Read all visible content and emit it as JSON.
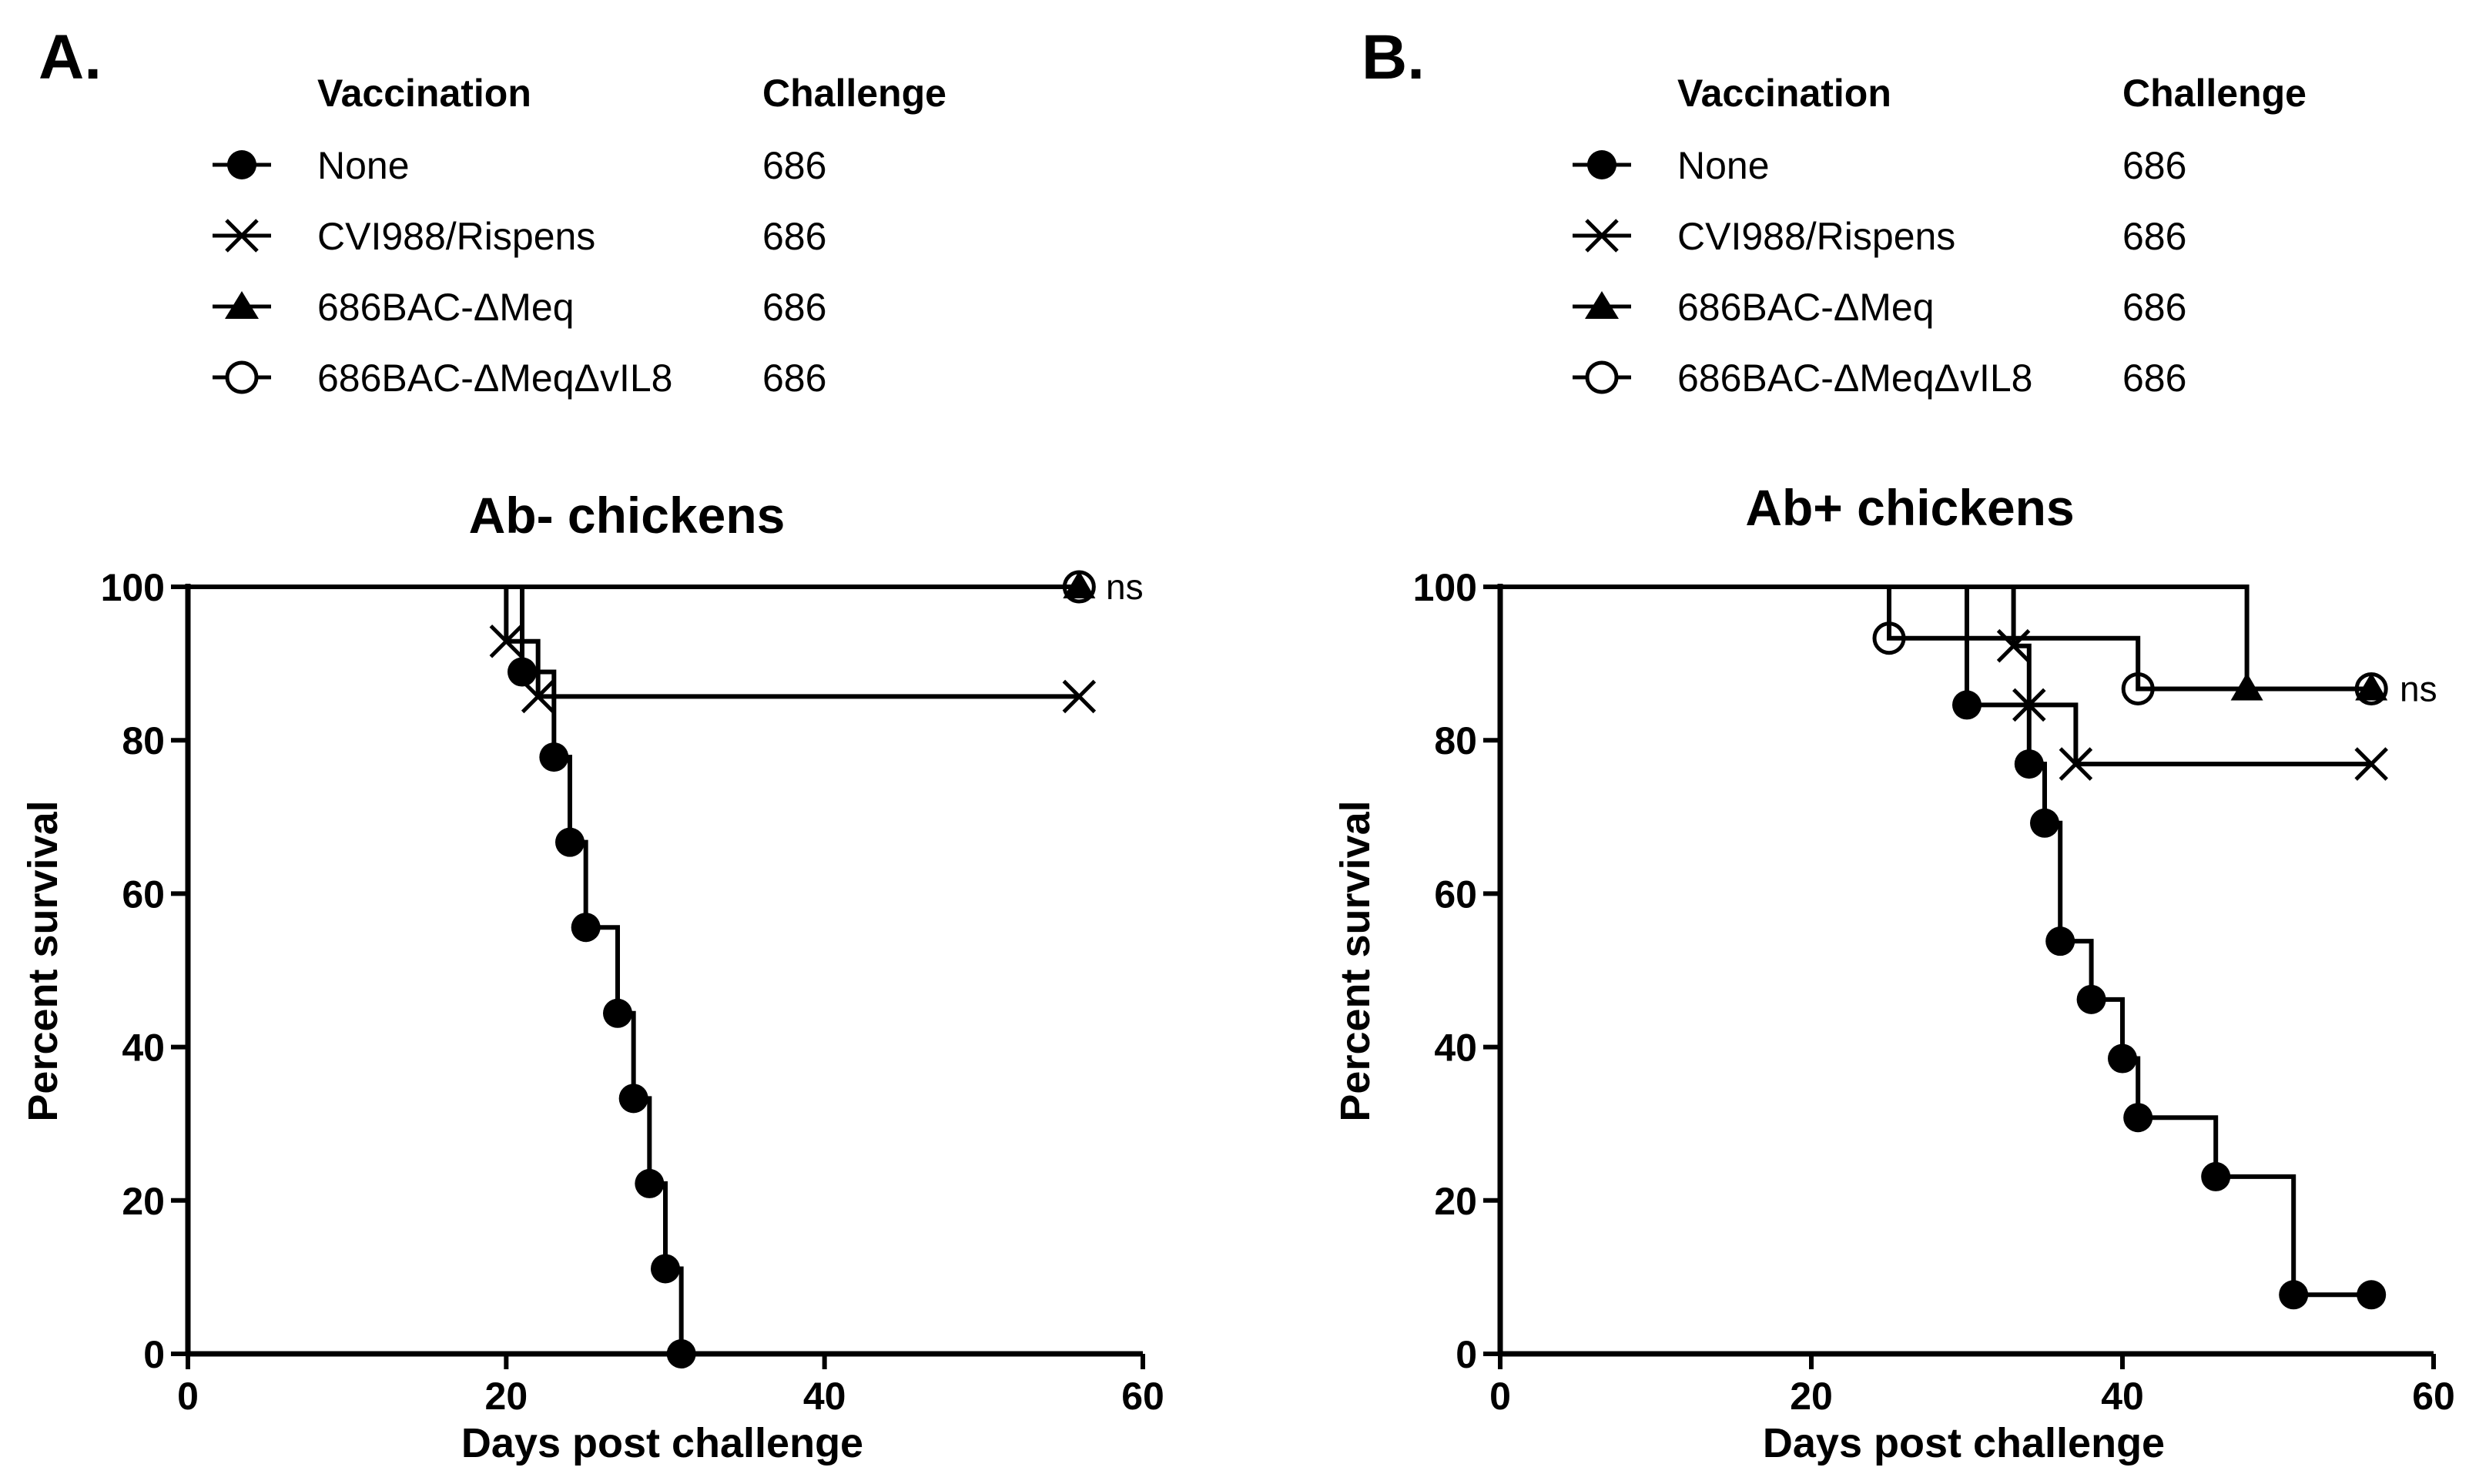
{
  "chart_data": [
    {
      "type": "line",
      "subtype": "kaplan-meier survival",
      "panel": "A.",
      "title": "Ab- chickens",
      "xlabel": "Days post  challenge",
      "ylabel": "Percent survival",
      "xlim": [
        0,
        60
      ],
      "ylim": [
        0,
        100
      ],
      "xticks": [
        0,
        20,
        40,
        60
      ],
      "yticks": [
        0,
        20,
        40,
        60,
        80,
        100
      ],
      "legend_headers": {
        "vaccination": "Vaccination",
        "challenge": "Challenge"
      },
      "annotation": "ns",
      "series": [
        {
          "name": "None",
          "challenge": "686",
          "marker": "filled-circle",
          "steps": [
            [
              0,
              100
            ],
            [
              21,
              88.9
            ],
            [
              23,
              77.8
            ],
            [
              24,
              66.7
            ],
            [
              25,
              55.6
            ],
            [
              27,
              44.4
            ],
            [
              28,
              33.3
            ],
            [
              29,
              22.2
            ],
            [
              30,
              11.1
            ],
            [
              31,
              0
            ]
          ]
        },
        {
          "name": "CVI988/Rispens",
          "challenge": "686",
          "marker": "x",
          "steps": [
            [
              0,
              100
            ],
            [
              20,
              92.9
            ],
            [
              22,
              85.7
            ],
            [
              56,
              85.7
            ]
          ]
        },
        {
          "name": "686BAC-ΔMeq",
          "challenge": "686",
          "marker": "filled-triangle",
          "steps": [
            [
              0,
              100
            ],
            [
              56,
              100
            ]
          ]
        },
        {
          "name": "686BAC-ΔMeqΔvIL8",
          "challenge": "686",
          "marker": "open-circle",
          "steps": [
            [
              0,
              100
            ],
            [
              56,
              100
            ]
          ]
        }
      ]
    },
    {
      "type": "line",
      "subtype": "kaplan-meier survival",
      "panel": "B.",
      "title": "Ab+ chickens",
      "xlabel": "Days post  challenge",
      "ylabel": "Percent survival",
      "xlim": [
        0,
        60
      ],
      "ylim": [
        0,
        100
      ],
      "xticks": [
        0,
        20,
        40,
        60
      ],
      "yticks": [
        0,
        20,
        40,
        60,
        80,
        100
      ],
      "legend_headers": {
        "vaccination": "Vaccination",
        "challenge": "Challenge"
      },
      "annotation": "ns",
      "series": [
        {
          "name": "None",
          "challenge": "686",
          "marker": "filled-circle",
          "steps": [
            [
              0,
              100
            ],
            [
              30,
              84.6
            ],
            [
              34,
              76.9
            ],
            [
              35,
              69.2
            ],
            [
              36,
              53.8
            ],
            [
              38,
              46.2
            ],
            [
              40,
              38.5
            ],
            [
              41,
              30.8
            ],
            [
              46,
              23.1
            ],
            [
              51,
              7.7
            ],
            [
              56,
              7.7
            ]
          ]
        },
        {
          "name": "CVI988/Rispens",
          "challenge": "686",
          "marker": "x",
          "steps": [
            [
              0,
              100
            ],
            [
              33,
              92.3
            ],
            [
              34,
              84.6
            ],
            [
              37,
              76.9
            ],
            [
              56,
              76.9
            ]
          ]
        },
        {
          "name": "686BAC-ΔMeq",
          "challenge": "686",
          "marker": "filled-triangle",
          "steps": [
            [
              0,
              100
            ],
            [
              48,
              86.7
            ],
            [
              56,
              86.7
            ]
          ]
        },
        {
          "name": "686BAC-ΔMeqΔvIL8",
          "challenge": "686",
          "marker": "open-circle",
          "steps": [
            [
              0,
              100
            ],
            [
              25,
              93.3
            ],
            [
              41,
              86.7
            ],
            [
              56,
              86.7
            ]
          ]
        }
      ]
    }
  ]
}
